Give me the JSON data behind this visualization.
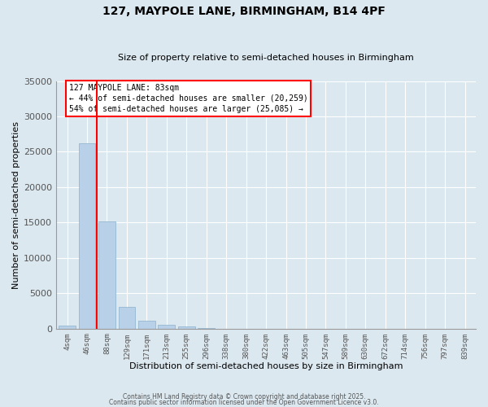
{
  "title_line1": "127, MAYPOLE LANE, BIRMINGHAM, B14 4PF",
  "title_line2": "Size of property relative to semi-detached houses in Birmingham",
  "xlabel": "Distribution of semi-detached houses by size in Birmingham",
  "ylabel": "Number of semi-detached properties",
  "categories": [
    "4sqm",
    "46sqm",
    "88sqm",
    "129sqm",
    "171sqm",
    "213sqm",
    "255sqm",
    "296sqm",
    "338sqm",
    "380sqm",
    "422sqm",
    "463sqm",
    "505sqm",
    "547sqm",
    "589sqm",
    "630sqm",
    "672sqm",
    "714sqm",
    "756sqm",
    "797sqm",
    "839sqm"
  ],
  "values": [
    400,
    26200,
    15200,
    3100,
    1100,
    500,
    350,
    100,
    0,
    0,
    0,
    0,
    0,
    0,
    0,
    0,
    0,
    0,
    0,
    0,
    0
  ],
  "bar_color": "#b8d0e8",
  "bar_edge_color": "#8ab0cc",
  "vline_color": "red",
  "vline_pos": 1.5,
  "annotation_text": "127 MAYPOLE LANE: 83sqm\n← 44% of semi-detached houses are smaller (20,259)\n54% of semi-detached houses are larger (25,085) →",
  "box_color": "white",
  "box_edge_color": "red",
  "ylim": [
    0,
    35000
  ],
  "yticks": [
    0,
    5000,
    10000,
    15000,
    20000,
    25000,
    30000,
    35000
  ],
  "background_color": "#dce8f0",
  "grid_color": "white",
  "footer_line1": "Contains HM Land Registry data © Crown copyright and database right 2025.",
  "footer_line2": "Contains public sector information licensed under the Open Government Licence v3.0."
}
